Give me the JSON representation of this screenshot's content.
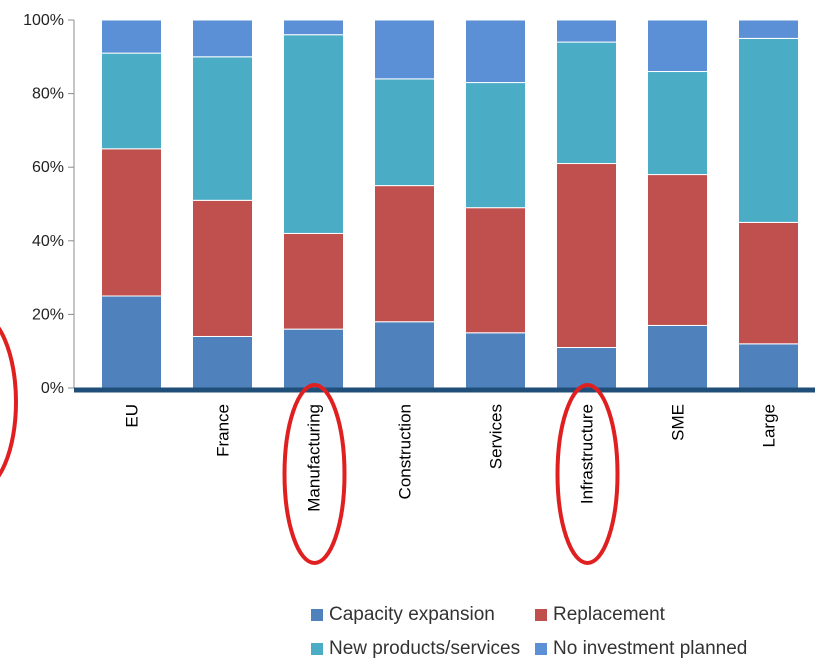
{
  "chart_data": {
    "type": "bar",
    "stacked": true,
    "categories": [
      "EU",
      "France",
      "Manufacturing",
      "Construction",
      "Services",
      "Infrastructure",
      "SME",
      "Large"
    ],
    "series": [
      {
        "name": "Capacity expansion",
        "color": "#4f81bd",
        "values": [
          25,
          14,
          16,
          18,
          15,
          11,
          17,
          12
        ]
      },
      {
        "name": "Replacement",
        "color": "#c0504d",
        "values": [
          40,
          37,
          26,
          37,
          34,
          50,
          41,
          33
        ]
      },
      {
        "name": "New products/services",
        "color": "#4bacc6",
        "values": [
          26,
          39,
          54,
          29,
          34,
          33,
          28,
          50
        ]
      },
      {
        "name": "No investment planned",
        "color": "#5b8fd6",
        "values": [
          9,
          10,
          4,
          16,
          17,
          6,
          14,
          5
        ]
      }
    ],
    "ylim": [
      0,
      100
    ],
    "yticks": [
      "0%",
      "20%",
      "40%",
      "60%",
      "80%",
      "100%"
    ],
    "grid": false,
    "legend_position": "bottom",
    "highlighted_categories": [
      "Manufacturing",
      "Infrastructure"
    ],
    "highlight_color": "#e02020",
    "axis_color": "#1f4e79"
  }
}
